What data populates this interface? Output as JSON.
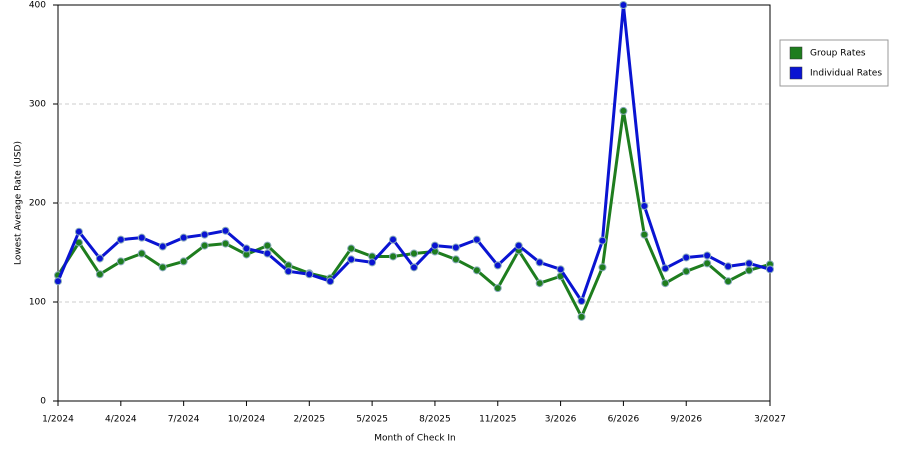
{
  "chart_data": {
    "type": "line",
    "x_label": "Month of Check In",
    "y_label": "Lowest Average Rate (USD)",
    "categories": [
      "1/2024",
      null,
      null,
      "4/2024",
      null,
      null,
      "7/2024",
      null,
      null,
      "10/2024",
      null,
      null,
      "2/2025",
      null,
      null,
      "5/2025",
      null,
      null,
      "8/2025",
      null,
      null,
      "11/2025",
      null,
      null,
      "3/2026",
      null,
      null,
      "6/2026",
      null,
      null,
      "9/2026",
      null,
      null,
      null,
      "3/2027"
    ],
    "series": [
      {
        "name": "Group Rates",
        "color": "#1e7d1e",
        "values": [
          127,
          160,
          128,
          141,
          149,
          135,
          141,
          157,
          159,
          148,
          157,
          137,
          129,
          124,
          154,
          146,
          146,
          149,
          151,
          143,
          132,
          114,
          152,
          119,
          126,
          85,
          135,
          293,
          168,
          119,
          131,
          139,
          121,
          132,
          138
        ]
      },
      {
        "name": "Individual Rates",
        "color": "#0a14d2",
        "values": [
          121,
          171,
          144,
          163,
          165,
          156,
          165,
          168,
          172,
          154,
          149,
          131,
          128,
          121,
          143,
          140,
          163,
          135,
          157,
          155,
          163,
          137,
          157,
          140,
          133,
          101,
          162,
          400,
          197,
          134,
          145,
          147,
          136,
          139,
          133
        ]
      }
    ],
    "ylim": [
      0,
      400
    ],
    "yticks": [
      0,
      100,
      200,
      300,
      400
    ],
    "grid": true,
    "legend": "right"
  }
}
